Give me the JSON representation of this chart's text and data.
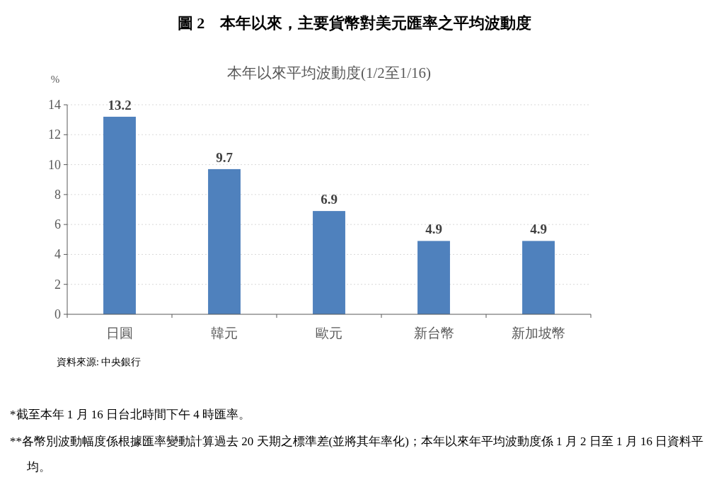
{
  "chart_data": {
    "type": "bar",
    "title": "圖 2　本年以來，主要貨幣對美元匯率之平均波動度",
    "subtitle": "本年以來平均波動度(1/2至1/16)",
    "ylabel": "%",
    "categories": [
      "日圓",
      "韓元",
      "歐元",
      "新台幣",
      "新加坡幣"
    ],
    "values": [
      13.2,
      9.7,
      6.9,
      4.9,
      4.9
    ],
    "color": "#4f81bd",
    "ylim": [
      0,
      14
    ],
    "yticks": [
      0,
      2,
      4,
      6,
      8,
      10,
      12,
      14
    ],
    "grid": "y",
    "data_labels": true,
    "annotations": [
      "資料來源: 中央銀行",
      "*截至本年 1 月 16 日台北時間下午 4 時匯率。",
      "**各幣別波動幅度係根據匯率變動計算過去 20 天期之標準差(並將其年率化)；本年以來年平均波動度係 1 月 2 日至 1 月 16 日資料平均。"
    ]
  }
}
